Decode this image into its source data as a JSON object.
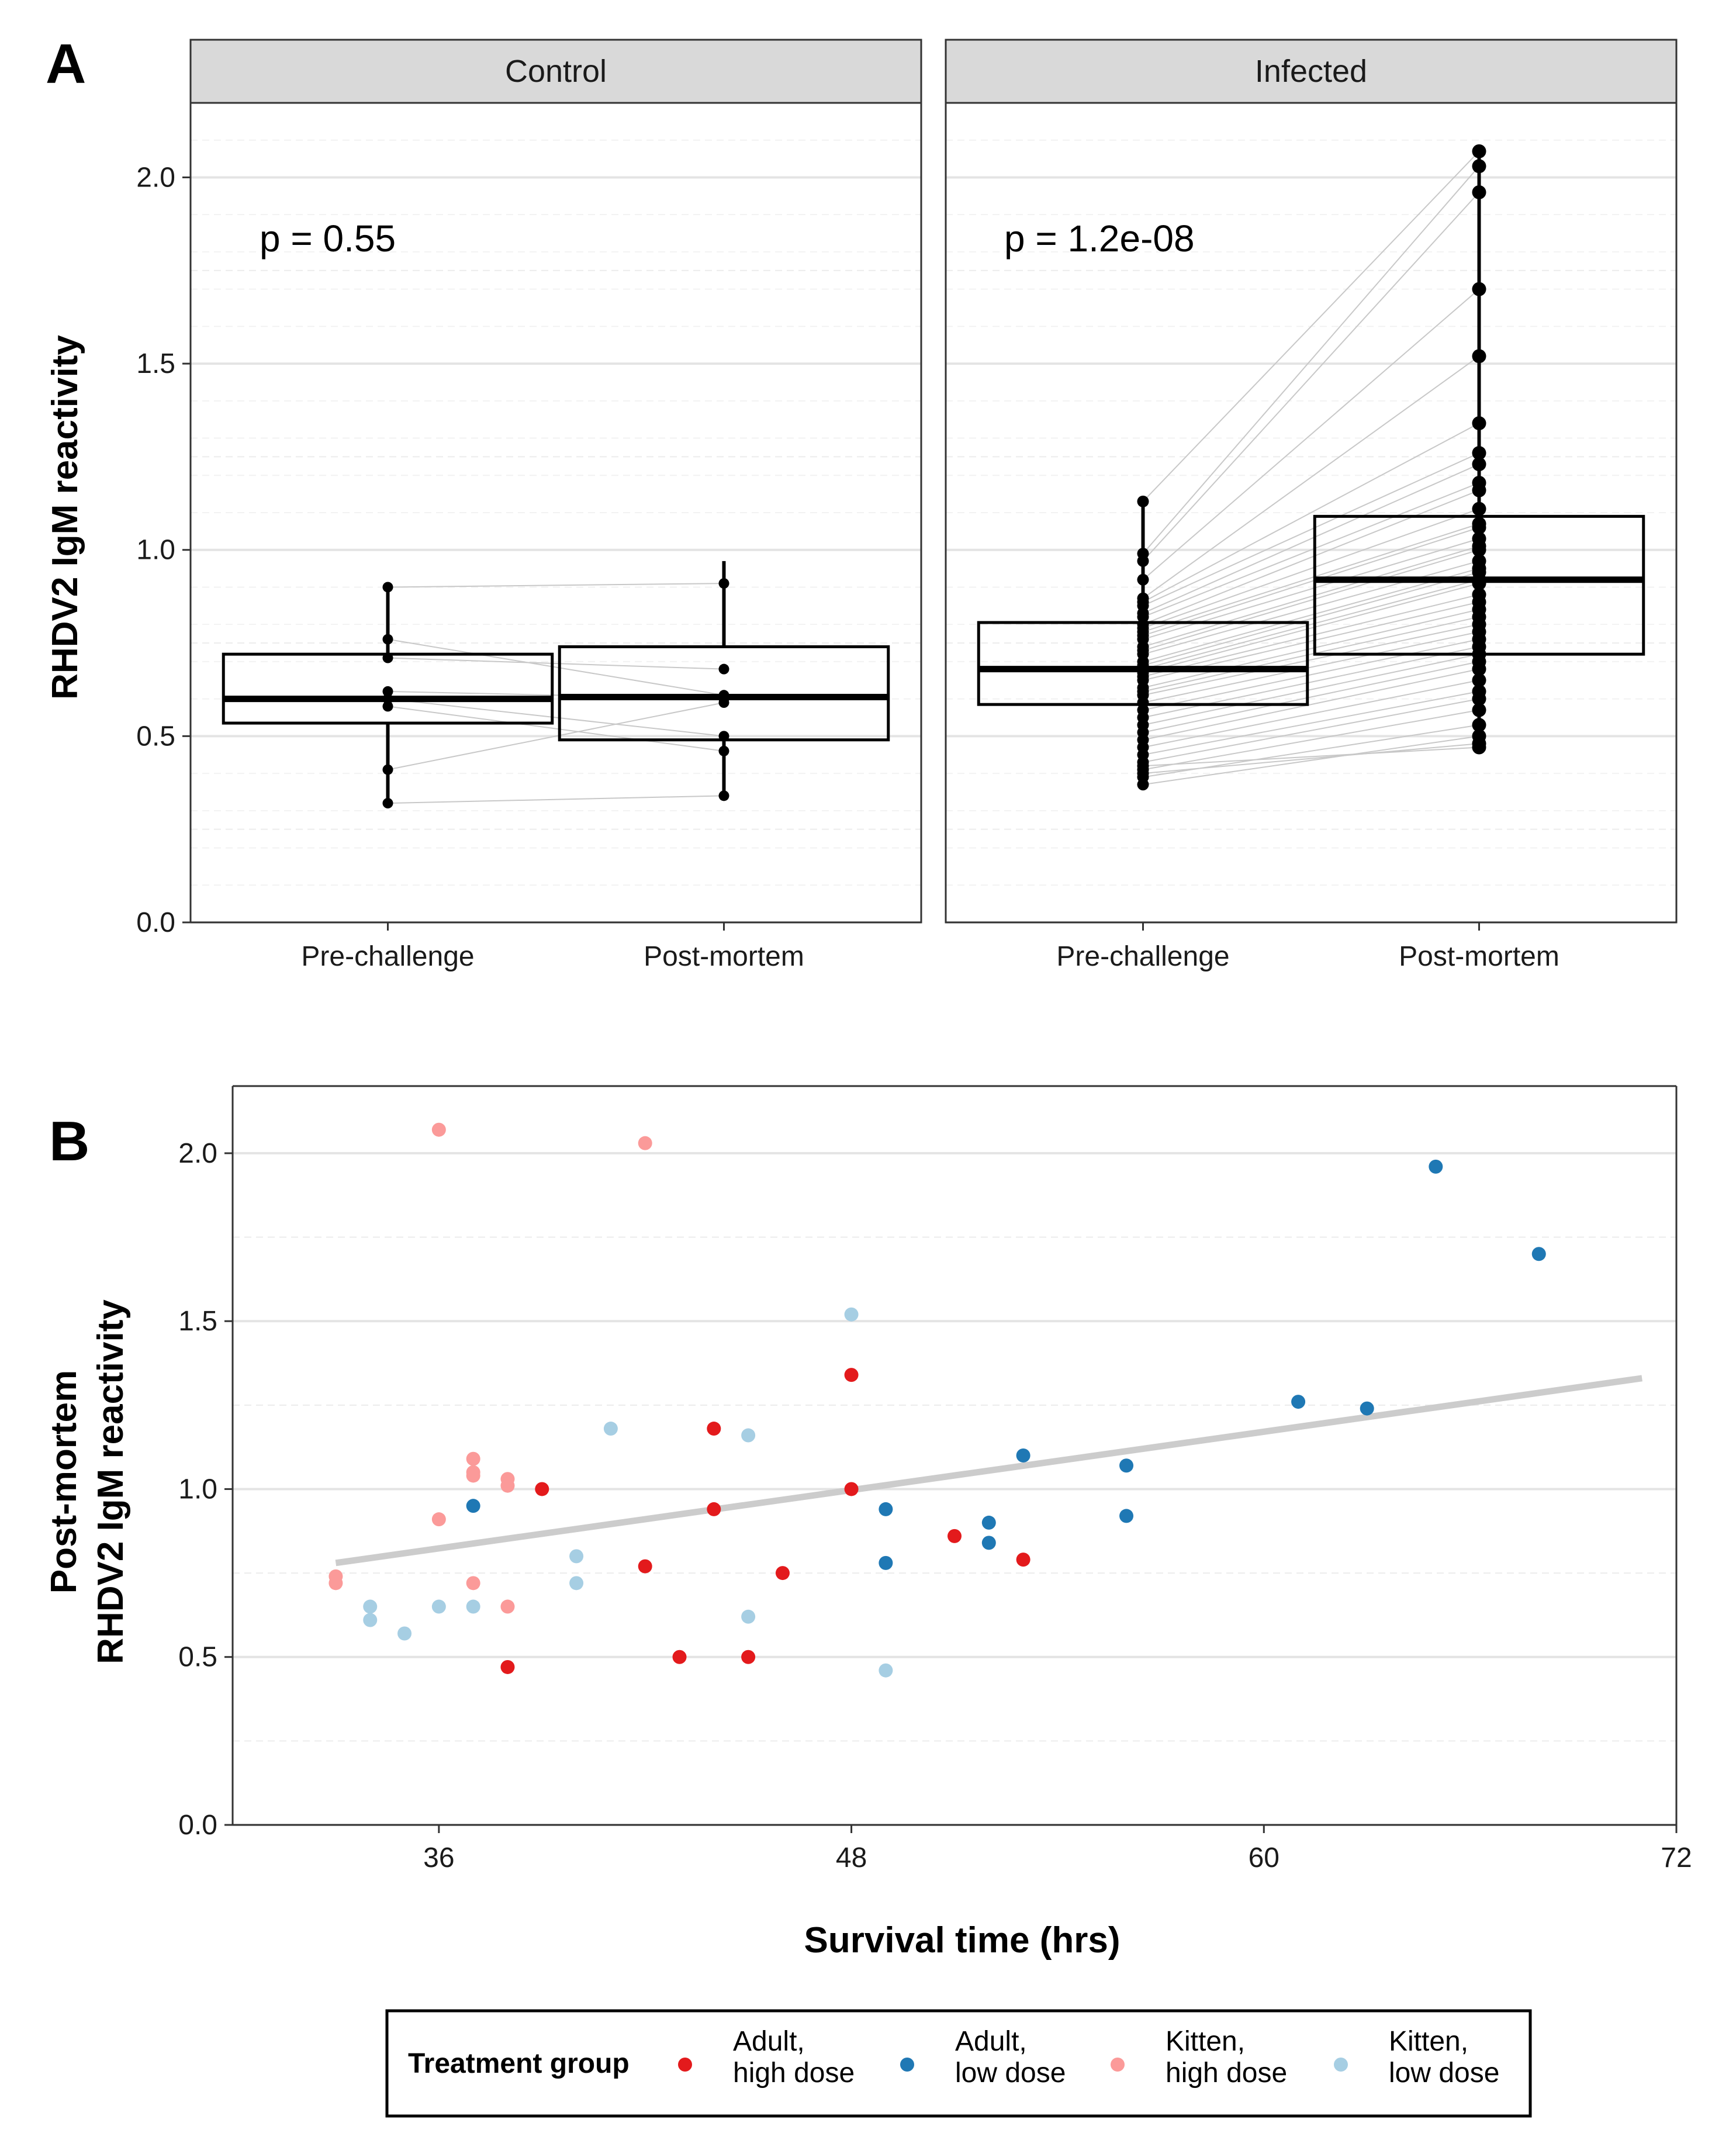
{
  "chart_data": [
    {
      "type": "box",
      "panel_label": "A",
      "ylabel": "RHDV2 IgM reactivity",
      "ylim": [
        0,
        2.2
      ],
      "yticks": [
        "0.0",
        "0.5",
        "1.0",
        "1.5",
        "2.0"
      ],
      "categories": [
        "Pre-challenge",
        "Post-mortem"
      ],
      "facets": [
        {
          "name": "Control",
          "p_value": "p = 0.55",
          "boxes": [
            {
              "category": "Pre-challenge",
              "q1": 0.535,
              "median": 0.6,
              "q3": 0.72,
              "whisker_low": 0.32,
              "whisker_high": 0.9
            },
            {
              "category": "Post-mortem",
              "q1": 0.49,
              "median": 0.605,
              "q3": 0.74,
              "whisker_low": 0.34,
              "whisker_high": 0.97
            }
          ],
          "pairs": [
            [
              0.9,
              0.91
            ],
            [
              0.76,
              0.61
            ],
            [
              0.71,
              0.68
            ],
            [
              0.62,
              0.6
            ],
            [
              0.6,
              0.5
            ],
            [
              0.58,
              0.46
            ],
            [
              0.41,
              0.59
            ],
            [
              0.32,
              0.34
            ]
          ]
        },
        {
          "name": "Infected",
          "p_value": "p = 1.2e-08",
          "boxes": [
            {
              "category": "Pre-challenge",
              "q1": 0.585,
              "median": 0.68,
              "q3": 0.805,
              "whisker_low": 0.37,
              "whisker_high": 1.13
            },
            {
              "category": "Post-mortem",
              "q1": 0.72,
              "median": 0.92,
              "q3": 1.09,
              "whisker_low": 0.47,
              "whisker_high": 2.07
            }
          ],
          "pairs": [
            [
              1.13,
              2.07
            ],
            [
              0.99,
              2.03
            ],
            [
              0.97,
              1.96
            ],
            [
              0.92,
              1.7
            ],
            [
              0.87,
              1.52
            ],
            [
              0.86,
              1.34
            ],
            [
              0.85,
              1.26
            ],
            [
              0.83,
              1.23
            ],
            [
              0.82,
              1.18
            ],
            [
              0.8,
              1.16
            ],
            [
              0.79,
              1.11
            ],
            [
              0.78,
              1.07
            ],
            [
              0.77,
              1.06
            ],
            [
              0.76,
              1.03
            ],
            [
              0.74,
              1.01
            ],
            [
              0.73,
              1.0
            ],
            [
              0.72,
              0.97
            ],
            [
              0.7,
              0.95
            ],
            [
              0.69,
              0.94
            ],
            [
              0.68,
              0.92
            ],
            [
              0.67,
              0.91
            ],
            [
              0.66,
              0.88
            ],
            [
              0.65,
              0.86
            ],
            [
              0.63,
              0.84
            ],
            [
              0.62,
              0.82
            ],
            [
              0.61,
              0.8
            ],
            [
              0.59,
              0.78
            ],
            [
              0.57,
              0.76
            ],
            [
              0.55,
              0.74
            ],
            [
              0.53,
              0.72
            ],
            [
              0.51,
              0.7
            ],
            [
              0.49,
              0.68
            ],
            [
              0.47,
              0.65
            ],
            [
              0.45,
              0.62
            ],
            [
              0.43,
              0.6
            ],
            [
              0.41,
              0.57
            ],
            [
              0.39,
              0.53
            ],
            [
              0.37,
              0.5
            ],
            [
              0.4,
              0.48
            ],
            [
              0.42,
              0.47
            ]
          ]
        }
      ]
    },
    {
      "type": "scatter",
      "panel_label": "B",
      "xlabel": "Survival time (hrs)",
      "ylabel_lines": [
        "Post-mortem",
        "RHDV2 IgM reactivity"
      ],
      "xlim": [
        30,
        72
      ],
      "ylim": [
        0,
        2.2
      ],
      "xticks": [
        "36",
        "48",
        "60",
        "72"
      ],
      "yticks": [
        "0.0",
        "0.5",
        "1.0",
        "1.5",
        "2.0"
      ],
      "trend_line": {
        "x": [
          33,
          71
        ],
        "y": [
          0.78,
          1.33
        ],
        "color": "#cccccc"
      },
      "legend": {
        "title": "Treatment group",
        "entries": [
          {
            "line1": "Adult,",
            "line2": "high dose",
            "color": "#e31a1c"
          },
          {
            "line1": "Adult,",
            "line2": "low dose",
            "color": "#1f78b4"
          },
          {
            "line1": "Kitten,",
            "line2": "high dose",
            "color": "#fb9a99"
          },
          {
            "line1": "Kitten,",
            "line2": "low dose",
            "color": "#a6cee3"
          }
        ]
      },
      "series": [
        {
          "name": "Adult, high dose",
          "color": "#e31a1c",
          "points": [
            [
              39,
              1.0
            ],
            [
              38,
              0.47
            ],
            [
              42,
              0.77
            ],
            [
              43,
              0.5
            ],
            [
              44,
              1.18
            ],
            [
              44,
              0.94
            ],
            [
              45,
              0.5
            ],
            [
              46,
              0.75
            ],
            [
              48,
              1.34
            ],
            [
              48,
              1.0
            ],
            [
              51,
              0.86
            ],
            [
              53,
              0.79
            ]
          ]
        },
        {
          "name": "Adult, low dose",
          "color": "#1f78b4",
          "points": [
            [
              37,
              0.95
            ],
            [
              49,
              0.94
            ],
            [
              49,
              0.78
            ],
            [
              52,
              0.9
            ],
            [
              52,
              0.84
            ],
            [
              53,
              1.1
            ],
            [
              56,
              1.07
            ],
            [
              56,
              0.92
            ],
            [
              61,
              1.26
            ],
            [
              63,
              1.24
            ],
            [
              65,
              1.96
            ],
            [
              68,
              1.7
            ]
          ]
        },
        {
          "name": "Kitten, high dose",
          "color": "#fb9a99",
          "points": [
            [
              36,
              2.07
            ],
            [
              42,
              2.03
            ],
            [
              33,
              0.74
            ],
            [
              33,
              0.72
            ],
            [
              36,
              0.91
            ],
            [
              37,
              1.09
            ],
            [
              37,
              1.05
            ],
            [
              37,
              1.04
            ],
            [
              37,
              0.72
            ],
            [
              38,
              1.03
            ],
            [
              38,
              1.01
            ],
            [
              38,
              0.65
            ]
          ]
        },
        {
          "name": "Kitten, low dose",
          "color": "#a6cee3",
          "points": [
            [
              34,
              0.65
            ],
            [
              34,
              0.61
            ],
            [
              35,
              0.57
            ],
            [
              36,
              0.65
            ],
            [
              37,
              0.65
            ],
            [
              40,
              0.8
            ],
            [
              40,
              0.72
            ],
            [
              41,
              1.18
            ],
            [
              45,
              1.16
            ],
            [
              45,
              0.62
            ],
            [
              48,
              1.52
            ],
            [
              49,
              0.46
            ]
          ]
        }
      ]
    }
  ]
}
